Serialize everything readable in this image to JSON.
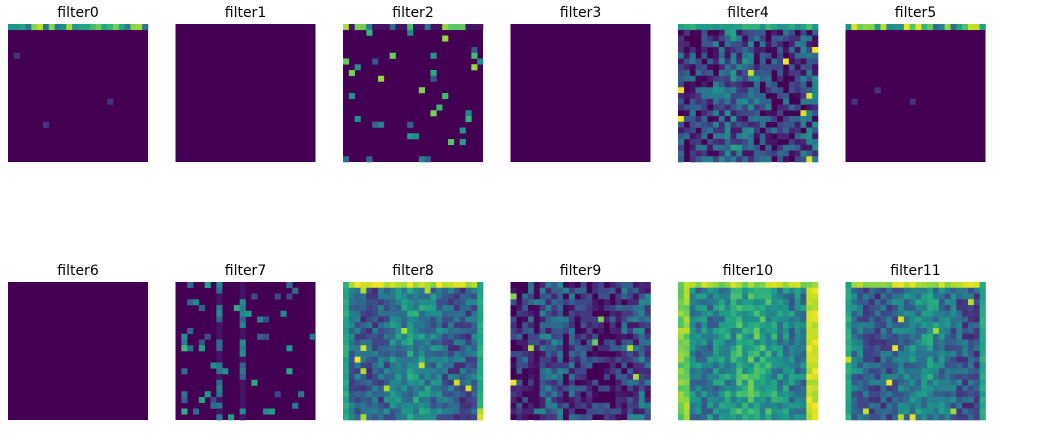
{
  "chart_data": {
    "type": "heatmap",
    "colormap": "viridis",
    "axes": "off",
    "grid": false,
    "layout": {
      "rows": 2,
      "cols": 6
    },
    "grid_size": 24,
    "panels": [
      {
        "title": "filter0",
        "pattern": "top_band_sparse",
        "seed": 11,
        "mean": 0.0
      },
      {
        "title": "filter1",
        "pattern": "empty",
        "seed": 13,
        "mean": 0.0
      },
      {
        "title": "filter2",
        "pattern": "sparse_dots",
        "seed": 17,
        "mean": 0.08
      },
      {
        "title": "filter3",
        "pattern": "empty",
        "seed": 19,
        "mean": 0.0
      },
      {
        "title": "filter4",
        "pattern": "noisy_columns",
        "seed": 23,
        "mean": 0.3
      },
      {
        "title": "filter5",
        "pattern": "top_band_sparse",
        "seed": 29,
        "mean": 0.0
      },
      {
        "title": "filter6",
        "pattern": "empty",
        "seed": 31,
        "mean": 0.0
      },
      {
        "title": "filter7",
        "pattern": "sparse_lines",
        "seed": 37,
        "mean": 0.08
      },
      {
        "title": "filter8",
        "pattern": "dense",
        "seed": 41,
        "mean": 0.32
      },
      {
        "title": "filter9",
        "pattern": "noisy_dark",
        "seed": 43,
        "mean": 0.22
      },
      {
        "title": "filter10",
        "pattern": "bright_dense",
        "seed": 47,
        "mean": 0.55
      },
      {
        "title": "filter11",
        "pattern": "dense",
        "seed": 53,
        "mean": 0.36
      }
    ]
  }
}
